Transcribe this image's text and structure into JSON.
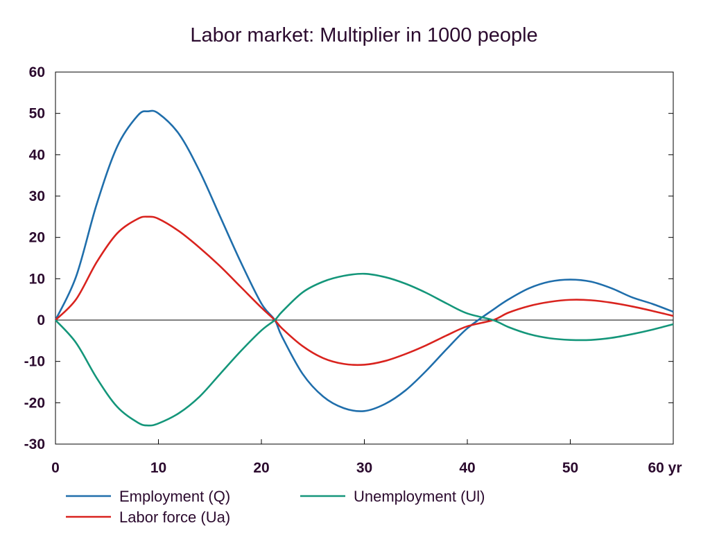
{
  "chart_data": {
    "type": "line",
    "title": "Labor market: Multiplier in 1000 people",
    "xlabel": "",
    "ylabel": "",
    "xlim": [
      0,
      60
    ],
    "ylim": [
      -30,
      60
    ],
    "x_ticks": [
      0,
      10,
      20,
      30,
      40,
      50,
      60
    ],
    "x_tick_labels": [
      "0",
      "10",
      "20",
      "30",
      "40",
      "50",
      "60 yr"
    ],
    "y_ticks": [
      -30,
      -20,
      -10,
      0,
      10,
      20,
      30,
      40,
      50,
      60
    ],
    "y_tick_labels": [
      "-30",
      "-20",
      "-10",
      "0",
      "10",
      "20",
      "30",
      "40",
      "50",
      "60"
    ],
    "grid": false,
    "zero_line": true,
    "legend_position": "bottom",
    "x": [
      0,
      2,
      4,
      6,
      8,
      9,
      10,
      12,
      14,
      16,
      18,
      20,
      21.3,
      22,
      24,
      26,
      28,
      30,
      32,
      34,
      36,
      38,
      40,
      42.5,
      44,
      46,
      48,
      50,
      52,
      54,
      56,
      58,
      60
    ],
    "series": [
      {
        "name": "Employment (Q)",
        "color": "#1f6eab",
        "values": [
          0,
          10.5,
          28,
          42,
          49.5,
          50.5,
          50,
          45,
          36,
          25,
          14,
          4,
          0,
          -4,
          -13,
          -18.5,
          -21.3,
          -22,
          -20.3,
          -17,
          -12.3,
          -7,
          -2,
          2.5,
          5,
          7.7,
          9.3,
          9.8,
          9.3,
          7.7,
          5.5,
          3.9,
          2
        ]
      },
      {
        "name": "Labor force (Ua)",
        "color": "#d9231e",
        "values": [
          0,
          5,
          14,
          21,
          24.5,
          25,
          24.5,
          21.5,
          17.5,
          13,
          8,
          3,
          0,
          -2,
          -6.3,
          -9.2,
          -10.6,
          -10.8,
          -9.9,
          -8.2,
          -6.1,
          -3.7,
          -1.5,
          0,
          1.8,
          3.4,
          4.4,
          4.9,
          4.8,
          4.2,
          3.3,
          2.2,
          1
        ]
      },
      {
        "name": "Unemployment (Ul)",
        "color": "#14967a",
        "values": [
          0,
          -5.5,
          -14,
          -21,
          -24.8,
          -25.5,
          -25,
          -22.5,
          -18.5,
          -13,
          -7.5,
          -2.5,
          0,
          2,
          6.7,
          9.3,
          10.7,
          11.2,
          10.4,
          8.8,
          6.6,
          4,
          1.6,
          0,
          -1.7,
          -3.4,
          -4.4,
          -4.8,
          -4.8,
          -4.3,
          -3.4,
          -2.3,
          -1
        ]
      }
    ]
  }
}
